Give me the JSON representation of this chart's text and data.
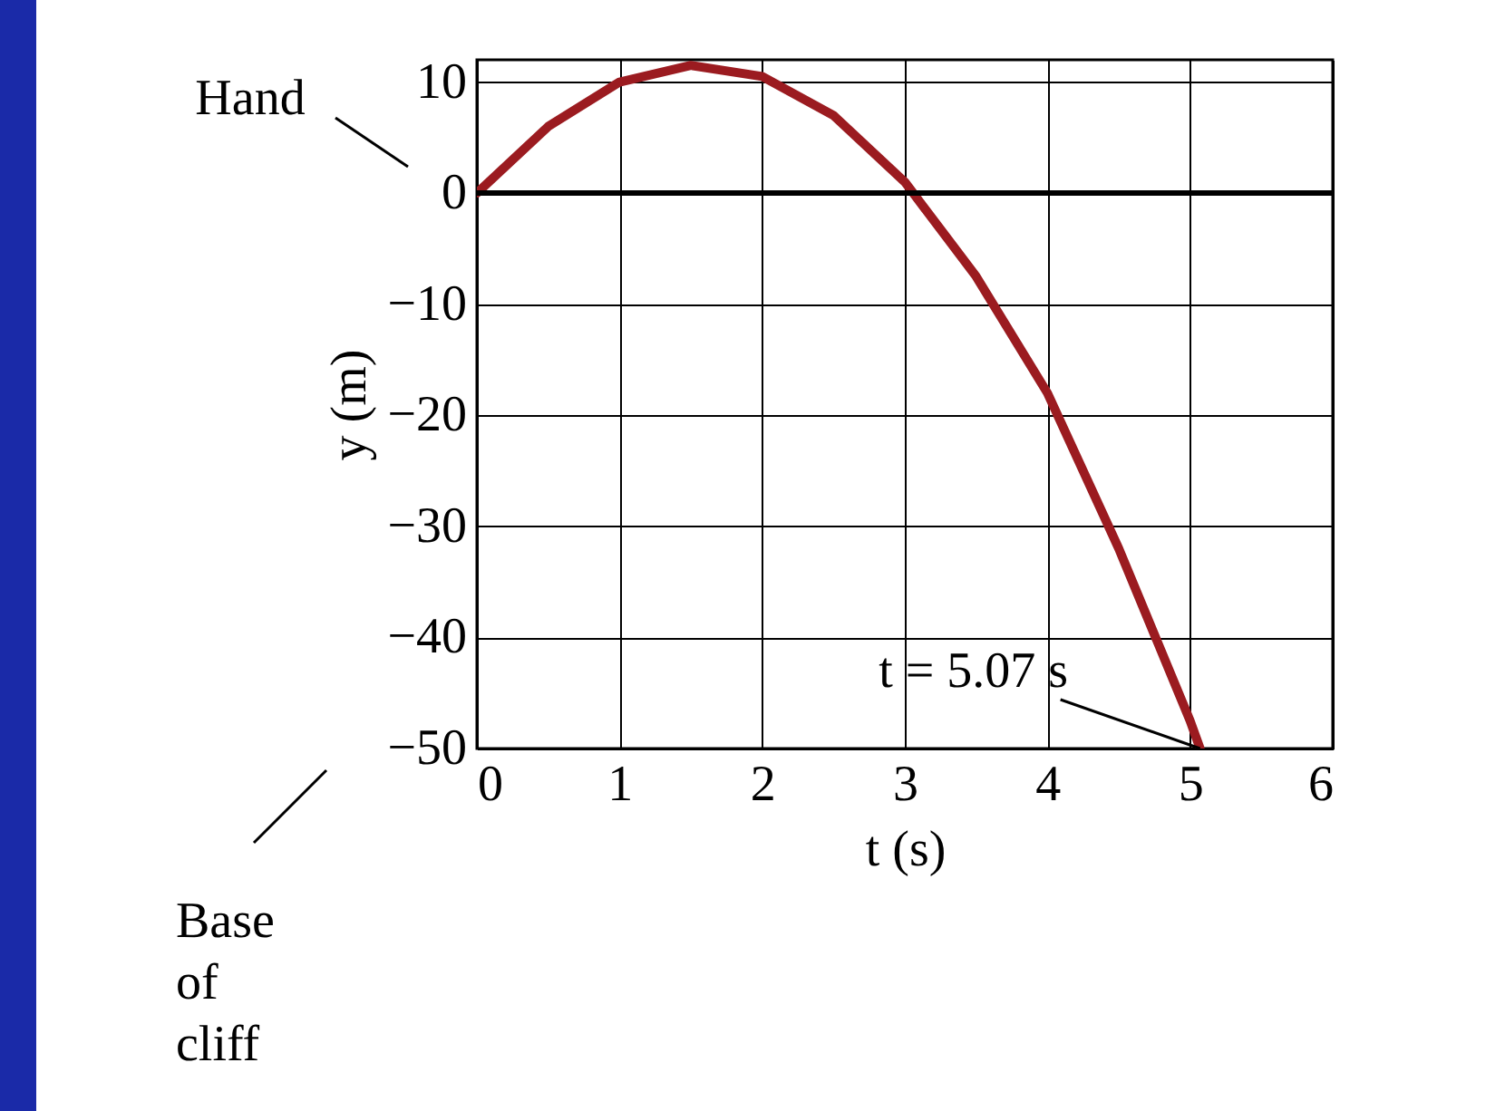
{
  "chart_data": {
    "type": "line",
    "xlabel": "t (s)",
    "ylabel": "y (m)",
    "x": [
      0,
      0.5,
      1,
      1.5,
      2,
      2.5,
      3,
      3.5,
      4,
      4.5,
      5,
      5.07
    ],
    "series": [
      {
        "color": "#9b1b20",
        "values": [
          0,
          6,
          10,
          11.5,
          10.5,
          7,
          1,
          -7.5,
          -18,
          -32,
          -47.5,
          -50
        ]
      }
    ],
    "xlim": [
      0,
      6
    ],
    "xticks": [
      0,
      1,
      2,
      3,
      4,
      5,
      6
    ],
    "ylim": [
      -50,
      12
    ],
    "yticks": [
      -50,
      -40,
      -30,
      -20,
      -10,
      0,
      10
    ],
    "grid": true,
    "marker": "none",
    "line_style": "solid",
    "ref_lines": [
      {
        "axis": "y",
        "value": 0,
        "color": "#000000"
      }
    ],
    "annotations": [
      "Hand",
      "Base of cliff",
      {
        "text": "t = 5.07 s",
        "x": 5.07,
        "y": -50
      }
    ]
  }
}
